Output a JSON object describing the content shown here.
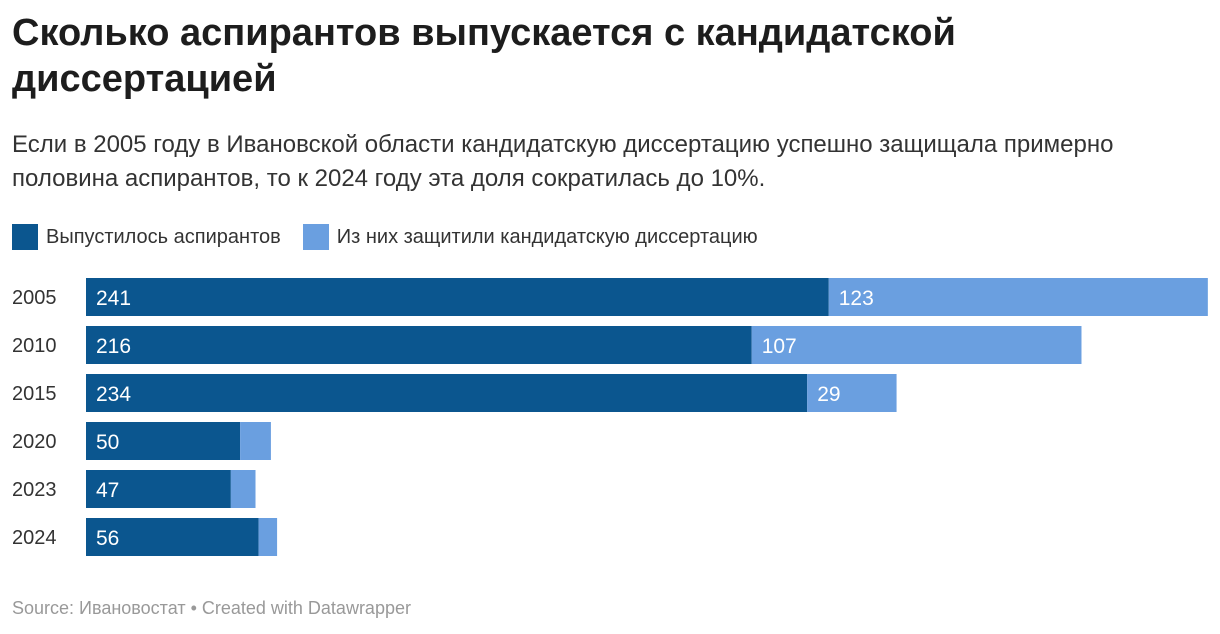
{
  "title": "Сколько аспирантов выпускается с кандидатской диссертацией",
  "subtitle": "Если в 2005 году в Ивановской области кандидатскую диссертацию успешно защищала примерно половина аспирантов, то к 2024 году эта доля сократилась до 10%.",
  "source": "Source: Ивановостат • Created with Datawrapper",
  "chart_data": {
    "type": "bar",
    "orientation": "horizontal",
    "stacked": true,
    "title": "Сколько аспирантов выпускается с кандидатской диссертацией",
    "categories": [
      "2005",
      "2010",
      "2015",
      "2020",
      "2023",
      "2024"
    ],
    "series": [
      {
        "name": "Выпустилось аспирантов",
        "color": "#0b568f",
        "values": [
          241,
          216,
          234,
          50,
          47,
          56
        ],
        "labels": [
          "241",
          "216",
          "234",
          "50",
          "47",
          "56"
        ]
      },
      {
        "name": "Из них защитили кандидатскую диссертацию",
        "color": "#6a9fe0",
        "values": [
          123,
          107,
          29,
          10,
          8,
          6
        ],
        "labels": [
          "123",
          "107",
          "29",
          "",
          "",
          ""
        ]
      }
    ],
    "legend": "top-left"
  }
}
